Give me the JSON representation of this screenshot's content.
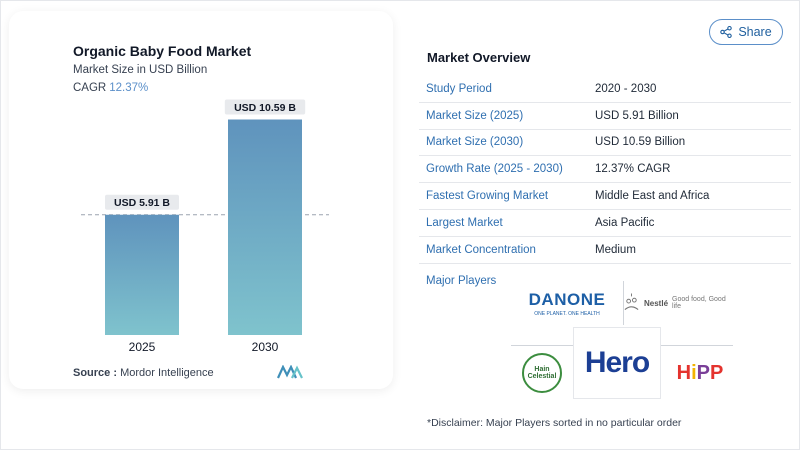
{
  "chart_data": {
    "type": "bar",
    "title": "Organic Baby Food Market",
    "subtitle": "Market Size in USD Billion",
    "cagr_label": "CAGR",
    "cagr_value": "12.37%",
    "categories": [
      "2025",
      "2030"
    ],
    "values": [
      5.91,
      10.59
    ],
    "data_labels": [
      "USD 5.91 B",
      "USD 10.59 B"
    ],
    "ylim": [
      0,
      11.5
    ],
    "reference_line": "dashed line at 2025 value",
    "colors": {
      "bar_top": "#5f93bd",
      "bar_bottom": "#7fc3cd",
      "label_bg": "#e8eaed",
      "dashed": "#9ca3af"
    },
    "grid": false,
    "legend": "none"
  },
  "source": {
    "label": "Source :",
    "text": "Mordor Intelligence"
  },
  "share": {
    "label": "Share",
    "icon": "share-icon"
  },
  "overview": {
    "title": "Market Overview",
    "rows": [
      {
        "label": "Study Period",
        "value": "2020 - 2030"
      },
      {
        "label": "Market Size (2025)",
        "value": "USD 5.91 Billion"
      },
      {
        "label": "Market Size (2030)",
        "value": "USD 10.59 Billion"
      },
      {
        "label": "Growth Rate (2025 - 2030)",
        "value": "12.37% CAGR"
      },
      {
        "label": "Fastest Growing Market",
        "value": "Middle East and Africa"
      },
      {
        "label": "Largest Market",
        "value": "Asia Pacific"
      },
      {
        "label": "Market Concentration",
        "value": "Medium"
      }
    ]
  },
  "players": {
    "label": "Major Players",
    "logos": {
      "danone": {
        "name": "DANONE",
        "tagline": "ONE PLANET. ONE HEALTH"
      },
      "nestle": {
        "name": "Nestlé",
        "tagline": "Good food, Good life"
      },
      "hain": {
        "line1": "Hain",
        "line2": "Celestial"
      },
      "hero": {
        "name": "Hero"
      },
      "hipp": {
        "name": "HiPP"
      }
    }
  },
  "disclaimer": "*Disclaimer: Major Players sorted in no particular order",
  "accent_color": "#2f6fb0"
}
